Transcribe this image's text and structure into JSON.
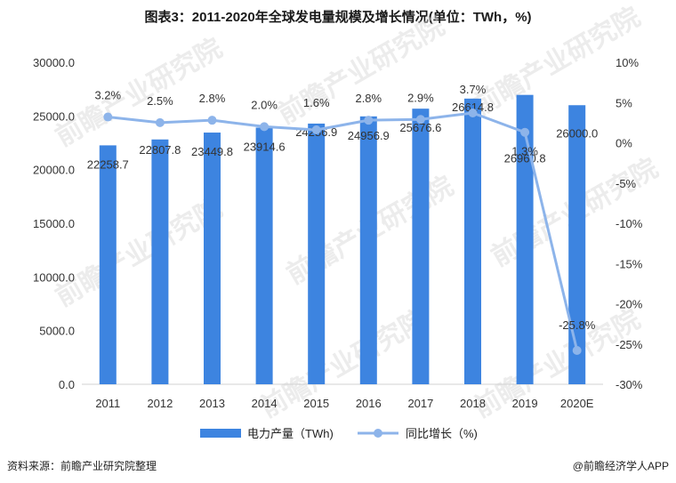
{
  "chart_data": {
    "type": "bar",
    "title": "图表3：2011-2020年全球发电量规模及增长情况(单位：TWh，%)",
    "categories": [
      "2011",
      "2012",
      "2013",
      "2014",
      "2015",
      "2016",
      "2017",
      "2018",
      "2019",
      "2020E"
    ],
    "series": [
      {
        "name": "电力产量（TWh)",
        "type": "bar",
        "axis": "left",
        "color": "#3d84e0",
        "values": [
          22258.7,
          22807.8,
          23449.8,
          23914.6,
          24286.9,
          24956.9,
          25676.6,
          26614.8,
          26960.8,
          26000.0
        ],
        "labels": [
          "22258.7",
          "22807.8",
          "23449.8",
          "23914.6",
          "24286.9",
          "24956.9",
          "25676.6",
          "26614.8",
          "26960.8",
          "26000.0"
        ]
      },
      {
        "name": "同比增长（%)",
        "type": "line",
        "axis": "right",
        "color": "#8db4ea",
        "values": [
          3.2,
          2.5,
          2.8,
          2.0,
          1.6,
          2.8,
          2.9,
          3.7,
          1.3,
          -25.8
        ],
        "labels": [
          "3.2%",
          "2.5%",
          "2.8%",
          "2.0%",
          "1.6%",
          "2.8%",
          "2.9%",
          "3.7%",
          "1.3%",
          "-25.8%"
        ]
      }
    ],
    "y_left": {
      "min": 0,
      "max": 30000,
      "ticks": [
        0,
        5000,
        10000,
        15000,
        20000,
        25000,
        30000
      ],
      "tick_labels": [
        "0.0",
        "5000.0",
        "10000.0",
        "15000.0",
        "20000.0",
        "25000.0",
        "30000.0"
      ]
    },
    "y_right": {
      "min": -30,
      "max": 10,
      "ticks": [
        10,
        5,
        0,
        -5,
        -10,
        -15,
        -20,
        -25,
        -30
      ],
      "tick_labels": [
        "10%",
        "5%",
        "0%",
        "-5%",
        "-10%",
        "-15%",
        "-20%",
        "-25%",
        "-30%"
      ]
    },
    "grid": false,
    "legend_position": "bottom"
  },
  "footer": {
    "source": "资料来源：前瞻产业研究院整理",
    "credit": "@前瞻经济学人APP"
  },
  "watermark": "前瞻产业研究院"
}
